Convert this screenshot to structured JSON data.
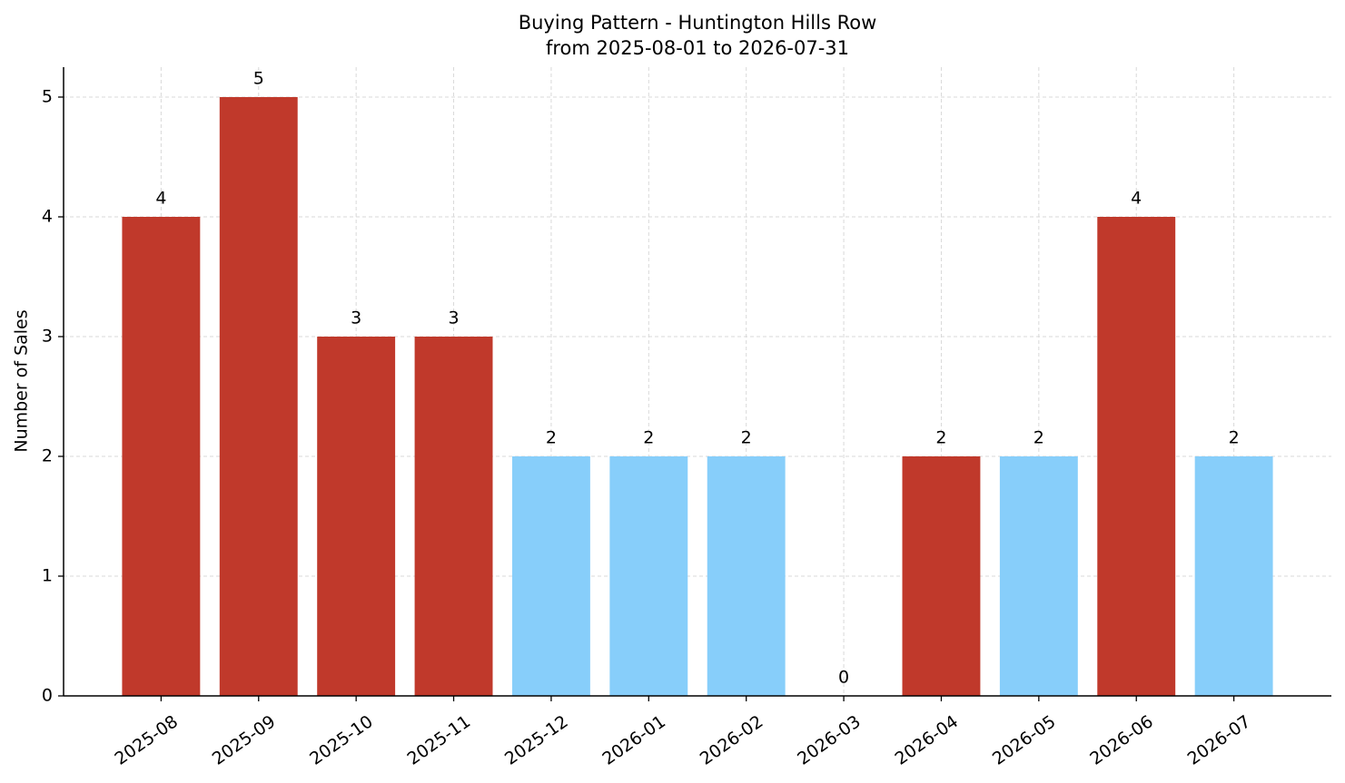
{
  "chart_data": {
    "type": "bar",
    "title": "Buying Pattern - Huntington Hills Row",
    "subtitle": "from 2025-08-01 to 2026-07-31",
    "y_label": "Number of Sales",
    "categories": [
      "2025-08",
      "2025-09",
      "2025-10",
      "2025-11",
      "2025-12",
      "2026-01",
      "2026-02",
      "2026-03",
      "2026-04",
      "2026-05",
      "2026-06",
      "2026-07"
    ],
    "values": [
      4,
      5,
      3,
      3,
      2,
      2,
      2,
      0,
      2,
      2,
      4,
      2
    ],
    "colors": [
      "#c0392b",
      "#c0392b",
      "#c0392b",
      "#c0392b",
      "#87cefa",
      "#87cefa",
      "#87cefa",
      "#87cefa",
      "#c0392b",
      "#87cefa",
      "#c0392b",
      "#87cefa"
    ],
    "ylim": [
      0,
      5.25
    ],
    "yticks": [
      0,
      1,
      2,
      3,
      4,
      5
    ],
    "grid": true
  }
}
